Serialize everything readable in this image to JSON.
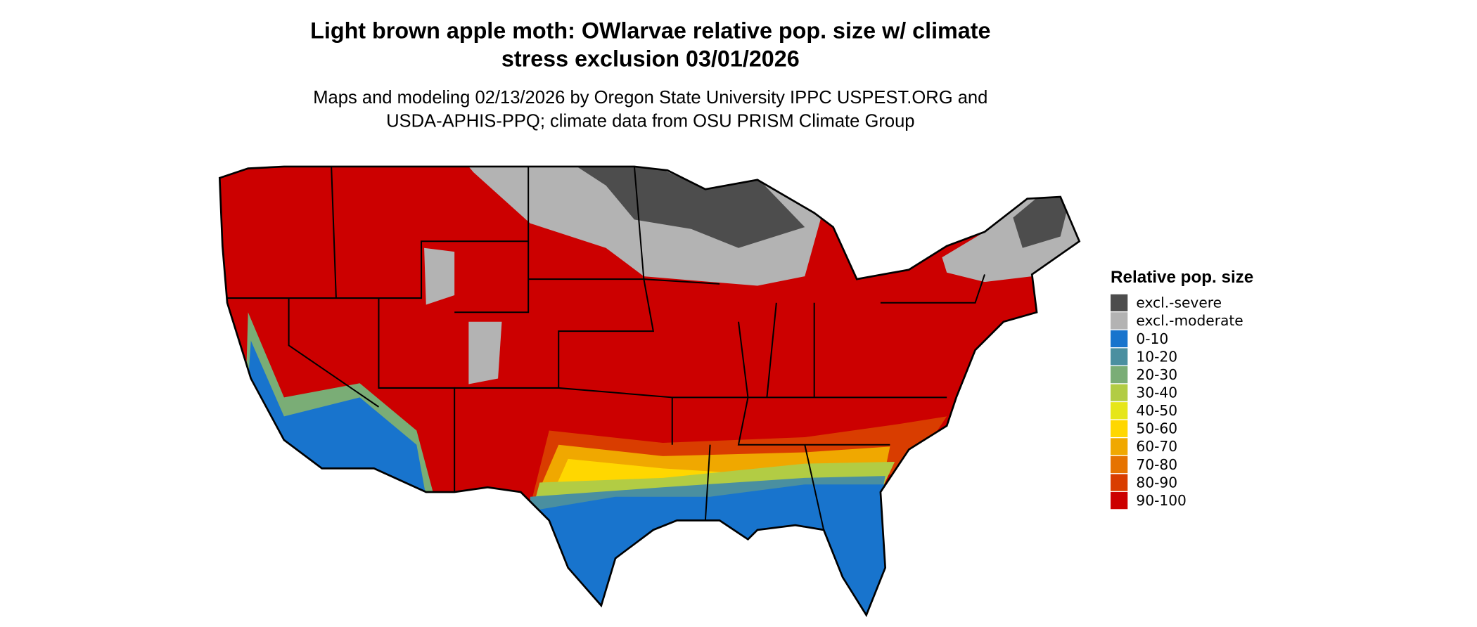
{
  "header": {
    "title": [
      "Light brown apple moth: OWlarvae relative pop. size w/ climate",
      "stress exclusion 03/01/2026"
    ],
    "subtitle": [
      "Maps and modeling 02/13/2026 by Oregon State University IPPC USPEST.ORG and",
      "USDA-APHIS-PPQ; climate data from OSU PRISM Climate Group"
    ]
  },
  "legend": {
    "title": "Relative pop. size",
    "items": [
      {
        "label": "excl.-severe",
        "color": "#4d4d4d"
      },
      {
        "label": "excl.-moderate",
        "color": "#b3b3b3"
      },
      {
        "label": "0-10",
        "color": "#1874cd"
      },
      {
        "label": "10-20",
        "color": "#4a8fa0"
      },
      {
        "label": "20-30",
        "color": "#7aad76"
      },
      {
        "label": "30-40",
        "color": "#b2cc44"
      },
      {
        "label": "40-50",
        "color": "#e6e619"
      },
      {
        "label": "50-60",
        "color": "#ffd700"
      },
      {
        "label": "60-70",
        "color": "#f0a800"
      },
      {
        "label": "70-80",
        "color": "#e67300"
      },
      {
        "label": "80-90",
        "color": "#d93d00"
      },
      {
        "label": "90-100",
        "color": "#cc0000"
      }
    ]
  }
}
